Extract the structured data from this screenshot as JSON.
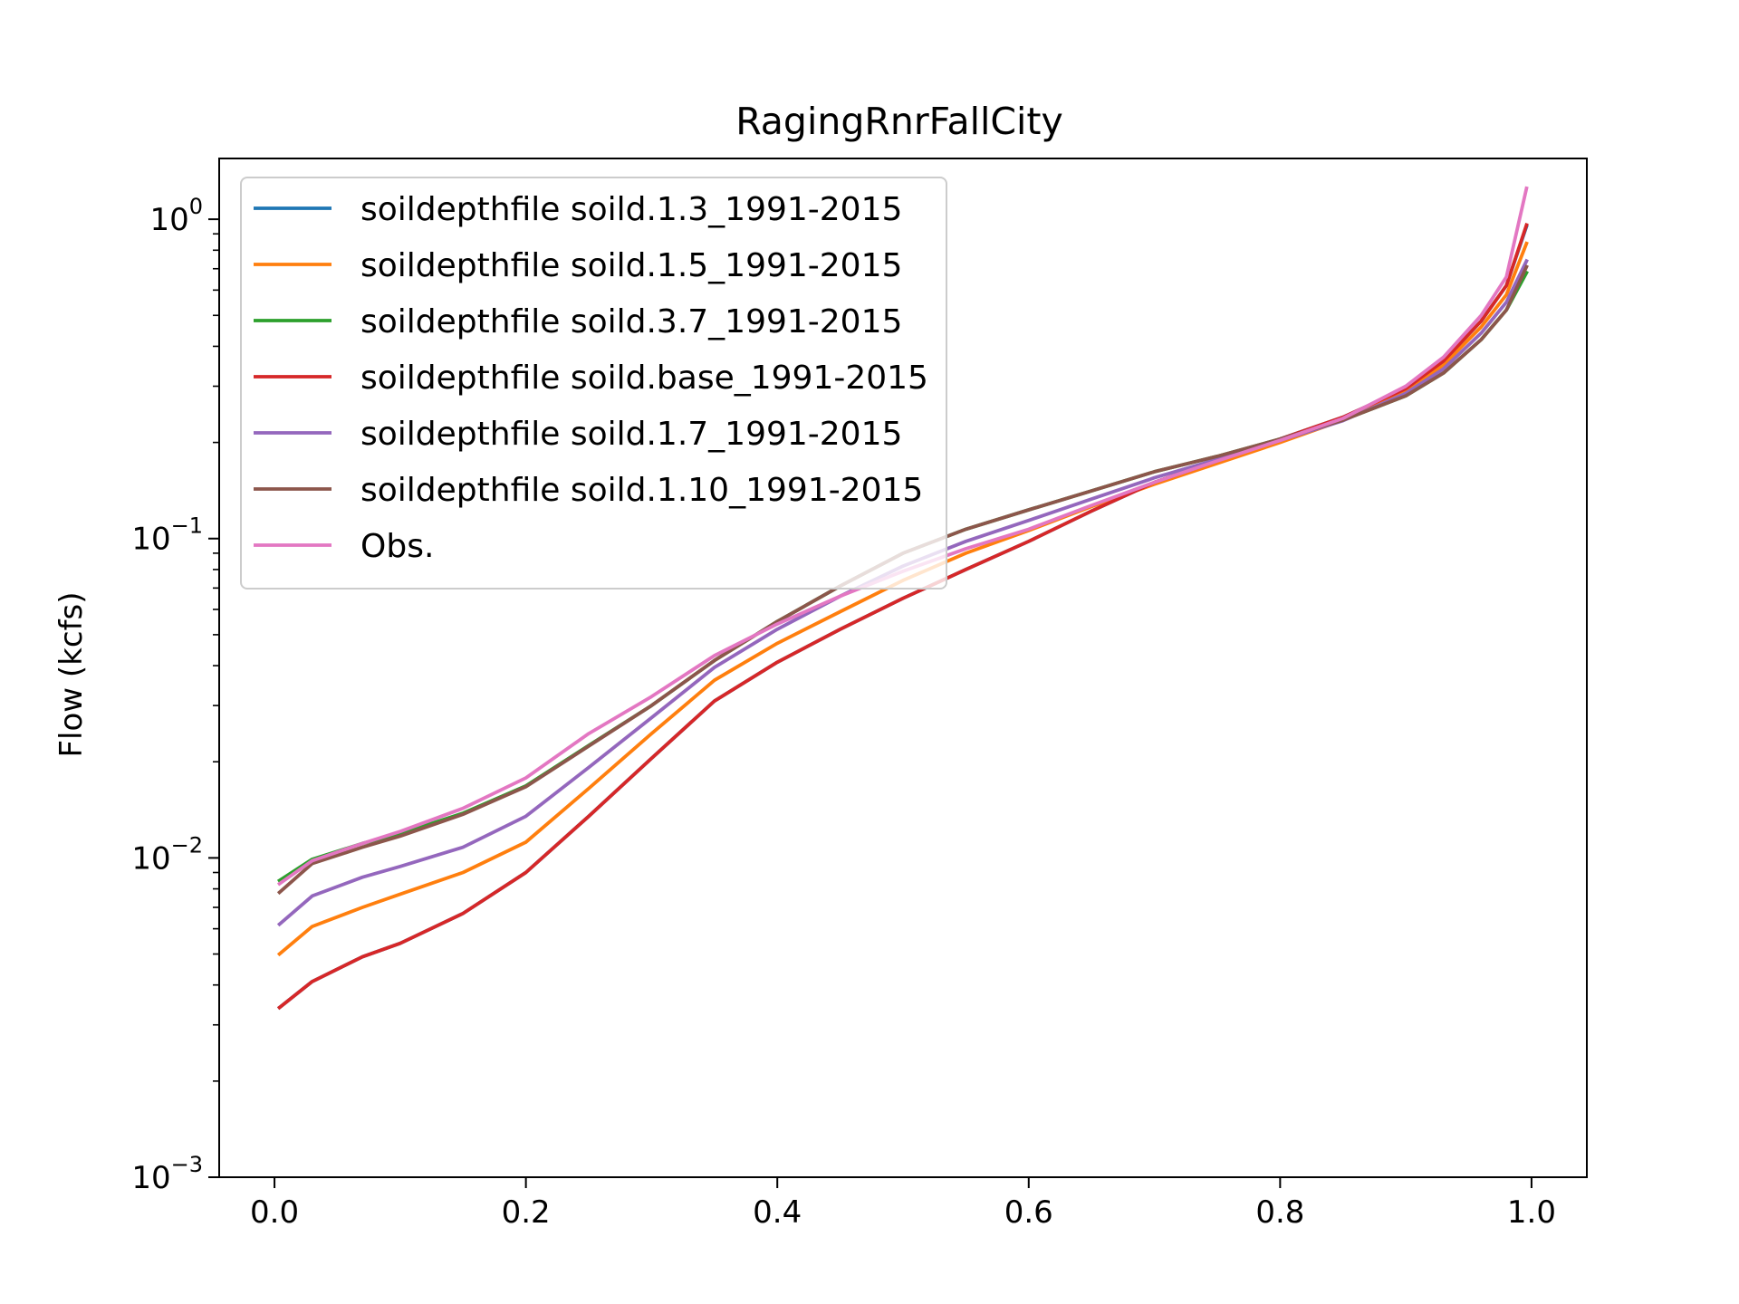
{
  "chart_data": {
    "type": "line",
    "title": "RagingRnrFallCity",
    "xlabel": "",
    "ylabel": "Flow (kcfs)",
    "yscale": "log",
    "xlim": [
      -0.044,
      1.044
    ],
    "ylim": [
      0.001,
      1.55
    ],
    "xticks": [
      0.0,
      0.2,
      0.4,
      0.6,
      0.8,
      1.0
    ],
    "xtick_labels": [
      "0.0",
      "0.2",
      "0.4",
      "0.6",
      "0.8",
      "1.0"
    ],
    "yticks": [
      0.001,
      0.01,
      0.1,
      1.0
    ],
    "ytick_labels": [
      {
        "base": "10",
        "exp": "−3"
      },
      {
        "base": "10",
        "exp": "−2"
      },
      {
        "base": "10",
        "exp": "−1"
      },
      {
        "base": "10",
        "exp": "0"
      }
    ],
    "grid": false,
    "legend_position": "upper-left",
    "series": [
      {
        "name": "soildepthfile soild.1.3_1991-2015",
        "color": "#1f77b4",
        "x": [
          0.004,
          0.03,
          0.07,
          0.1,
          0.15,
          0.2,
          0.25,
          0.3,
          0.35,
          0.4,
          0.45,
          0.5,
          0.55,
          0.6,
          0.65,
          0.7,
          0.75,
          0.8,
          0.85,
          0.9,
          0.93,
          0.96,
          0.98,
          0.996
        ],
        "y": [
          0.0034,
          0.0041,
          0.0049,
          0.0054,
          0.0067,
          0.009,
          0.0135,
          0.0205,
          0.031,
          0.041,
          0.052,
          0.065,
          0.08,
          0.098,
          0.122,
          0.15,
          0.175,
          0.205,
          0.24,
          0.295,
          0.36,
          0.48,
          0.62,
          0.95
        ]
      },
      {
        "name": "soildepthfile soild.1.5_1991-2015",
        "color": "#ff7f0e",
        "x": [
          0.004,
          0.03,
          0.07,
          0.1,
          0.15,
          0.2,
          0.25,
          0.3,
          0.35,
          0.4,
          0.45,
          0.5,
          0.55,
          0.6,
          0.65,
          0.7,
          0.75,
          0.8,
          0.85,
          0.9,
          0.93,
          0.96,
          0.98,
          0.996
        ],
        "y": [
          0.005,
          0.0061,
          0.007,
          0.0077,
          0.009,
          0.0112,
          0.0165,
          0.0245,
          0.036,
          0.047,
          0.059,
          0.074,
          0.09,
          0.106,
          0.126,
          0.148,
          0.172,
          0.2,
          0.235,
          0.29,
          0.35,
          0.46,
          0.58,
          0.84
        ]
      },
      {
        "name": "soildepthfile soild.3.7_1991-2015",
        "color": "#2ca02c",
        "x": [
          0.004,
          0.03,
          0.07,
          0.1,
          0.15,
          0.2,
          0.25,
          0.3,
          0.35,
          0.4,
          0.45,
          0.5,
          0.55,
          0.6,
          0.65,
          0.7,
          0.75,
          0.8,
          0.85,
          0.9,
          0.93,
          0.96,
          0.98,
          0.996
        ],
        "y": [
          0.0085,
          0.0099,
          0.0111,
          0.0119,
          0.0138,
          0.0168,
          0.0225,
          0.03,
          0.0415,
          0.055,
          0.071,
          0.09,
          0.107,
          0.123,
          0.141,
          0.162,
          0.181,
          0.205,
          0.235,
          0.28,
          0.33,
          0.42,
          0.52,
          0.68
        ]
      },
      {
        "name": "soildepthfile soild.base_1991-2015",
        "color": "#d62728",
        "x": [
          0.004,
          0.03,
          0.07,
          0.1,
          0.15,
          0.2,
          0.25,
          0.3,
          0.35,
          0.4,
          0.45,
          0.5,
          0.55,
          0.6,
          0.65,
          0.7,
          0.75,
          0.8,
          0.85,
          0.9,
          0.93,
          0.96,
          0.98,
          0.996
        ],
        "y": [
          0.0034,
          0.0041,
          0.0049,
          0.0054,
          0.0067,
          0.009,
          0.0135,
          0.0205,
          0.031,
          0.041,
          0.052,
          0.065,
          0.08,
          0.098,
          0.122,
          0.15,
          0.175,
          0.205,
          0.24,
          0.295,
          0.36,
          0.48,
          0.62,
          0.96
        ]
      },
      {
        "name": "soildepthfile soild.1.7_1991-2015",
        "color": "#9467bd",
        "x": [
          0.004,
          0.03,
          0.07,
          0.1,
          0.15,
          0.2,
          0.25,
          0.3,
          0.35,
          0.4,
          0.45,
          0.5,
          0.55,
          0.6,
          0.65,
          0.7,
          0.75,
          0.8,
          0.85,
          0.9,
          0.93,
          0.96,
          0.98,
          0.996
        ],
        "y": [
          0.0062,
          0.0076,
          0.0087,
          0.0094,
          0.0108,
          0.0135,
          0.0192,
          0.0275,
          0.0395,
          0.052,
          0.066,
          0.082,
          0.098,
          0.114,
          0.133,
          0.155,
          0.177,
          0.203,
          0.234,
          0.285,
          0.34,
          0.44,
          0.55,
          0.74
        ]
      },
      {
        "name": "soildepthfile soild.1.10_1991-2015",
        "color": "#8c564b",
        "x": [
          0.004,
          0.03,
          0.07,
          0.1,
          0.15,
          0.2,
          0.25,
          0.3,
          0.35,
          0.4,
          0.45,
          0.5,
          0.55,
          0.6,
          0.65,
          0.7,
          0.75,
          0.8,
          0.85,
          0.9,
          0.93,
          0.96,
          0.98,
          0.996
        ],
        "y": [
          0.0078,
          0.0096,
          0.0108,
          0.0117,
          0.0137,
          0.0167,
          0.0224,
          0.03,
          0.0415,
          0.055,
          0.071,
          0.09,
          0.107,
          0.123,
          0.141,
          0.162,
          0.181,
          0.205,
          0.235,
          0.28,
          0.33,
          0.42,
          0.52,
          0.71
        ]
      },
      {
        "name": "Obs.",
        "color": "#e377c2",
        "x": [
          0.004,
          0.03,
          0.07,
          0.1,
          0.15,
          0.2,
          0.25,
          0.3,
          0.35,
          0.4,
          0.45,
          0.5,
          0.55,
          0.6,
          0.65,
          0.7,
          0.75,
          0.8,
          0.85,
          0.9,
          0.93,
          0.96,
          0.98,
          0.996
        ],
        "y": [
          0.0083,
          0.0098,
          0.0111,
          0.0121,
          0.0143,
          0.0178,
          0.0245,
          0.032,
          0.043,
          0.054,
          0.066,
          0.079,
          0.093,
          0.107,
          0.127,
          0.15,
          0.175,
          0.203,
          0.238,
          0.3,
          0.37,
          0.5,
          0.66,
          1.25
        ]
      }
    ]
  }
}
